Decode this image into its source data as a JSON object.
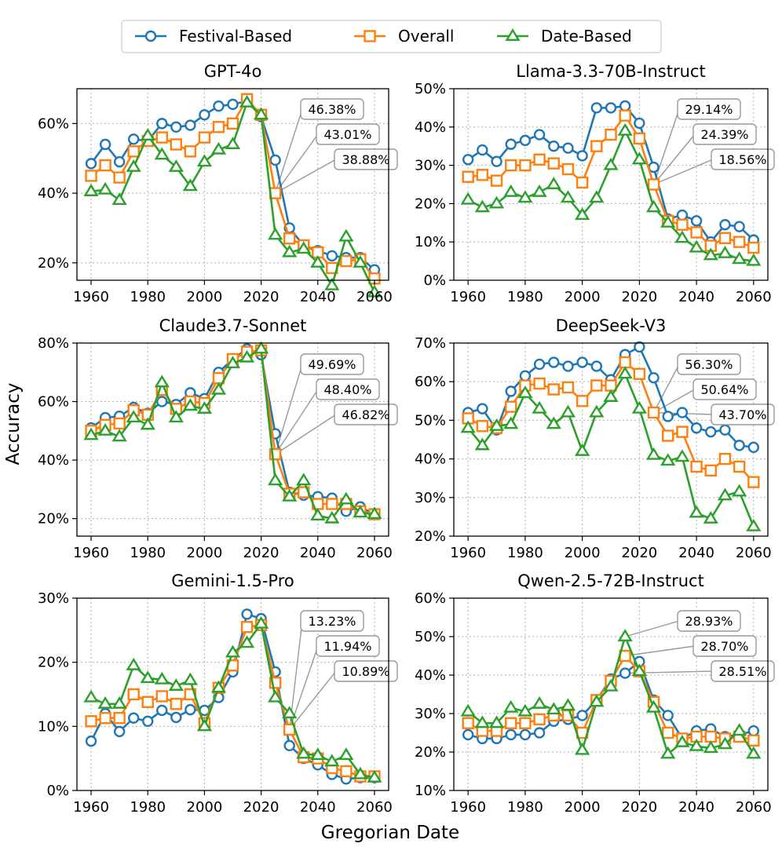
{
  "figure": {
    "ylabel": "Accuracy",
    "xlabel": "Gregorian Date",
    "legend": [
      "Festival-Based",
      "Overall",
      "Date-Based"
    ],
    "colors": {
      "Festival-Based": "#1f77b4",
      "Overall": "#ff7f0e",
      "Date-Based": "#2ca02c"
    }
  },
  "chart_data": [
    {
      "type": "line",
      "title": "GPT-4o",
      "x": [
        1960,
        1965,
        1970,
        1975,
        1980,
        1985,
        1990,
        1995,
        2000,
        2005,
        2010,
        2015,
        2020,
        2025,
        2030,
        2035,
        2040,
        2045,
        2050,
        2055,
        2060
      ],
      "xticks": [
        1960,
        1980,
        2000,
        2020,
        2040,
        2060
      ],
      "ylim": [
        15,
        70
      ],
      "yticks": [
        20,
        40,
        60
      ],
      "grid": true,
      "series": [
        {
          "name": "Festival-Based",
          "values": [
            48.5,
            54,
            49,
            55.5,
            55,
            60,
            59,
            59.5,
            62.5,
            65,
            65.5,
            66.5,
            62,
            49.5,
            30,
            25,
            23.5,
            22,
            21.5,
            21.5,
            18
          ]
        },
        {
          "name": "Overall",
          "values": [
            45,
            48,
            44.5,
            52,
            55,
            56,
            54,
            52,
            56,
            59,
            60,
            67,
            62.5,
            40,
            27,
            25,
            23,
            18.5,
            20.5,
            21,
            15.5
          ]
        },
        {
          "name": "Date-Based",
          "values": [
            40.5,
            41,
            38,
            47.5,
            56.5,
            51,
            47.5,
            42,
            49,
            52.5,
            54,
            66,
            62.5,
            28,
            23,
            24,
            20,
            13.5,
            27.5,
            20,
            11.5
          ]
        }
      ],
      "annotations": [
        "46.38%",
        "43.01%",
        "38.88%"
      ]
    },
    {
      "type": "line",
      "title": "Llama-3.3-70B-Instruct",
      "x": [
        1960,
        1965,
        1970,
        1975,
        1980,
        1985,
        1990,
        1995,
        2000,
        2005,
        2010,
        2015,
        2020,
        2025,
        2030,
        2035,
        2040,
        2045,
        2050,
        2055,
        2060
      ],
      "xticks": [
        1960,
        1980,
        2000,
        2020,
        2040,
        2060
      ],
      "ylim": [
        0,
        50
      ],
      "yticks": [
        0,
        10,
        20,
        30,
        40,
        50
      ],
      "grid": true,
      "series": [
        {
          "name": "Festival-Based",
          "values": [
            31.5,
            34,
            31,
            35.5,
            36.5,
            38,
            35,
            34.5,
            32.5,
            45,
            45,
            45.5,
            41,
            29.5,
            16,
            17,
            15.5,
            10,
            14.5,
            14,
            10.5
          ]
        },
        {
          "name": "Overall",
          "values": [
            27,
            27.5,
            26,
            30,
            30,
            31.5,
            30.5,
            29,
            25.5,
            35,
            38,
            43,
            37,
            25,
            15.5,
            14.5,
            12.5,
            9,
            11,
            10,
            8.5
          ]
        },
        {
          "name": "Date-Based",
          "values": [
            21,
            19,
            20,
            23,
            21.5,
            23,
            25,
            21.5,
            17,
            21.5,
            30,
            39,
            31.5,
            19,
            15,
            11,
            8.5,
            6.5,
            7,
            5.5,
            5
          ]
        }
      ],
      "annotations": [
        "29.14%",
        "24.39%",
        "18.56%"
      ]
    },
    {
      "type": "line",
      "title": "Claude3.7-Sonnet",
      "x": [
        1960,
        1965,
        1970,
        1975,
        1980,
        1985,
        1990,
        1995,
        2000,
        2005,
        2010,
        2015,
        2020,
        2025,
        2030,
        2035,
        2040,
        2045,
        2050,
        2055,
        2060
      ],
      "xticks": [
        1960,
        1980,
        2000,
        2020,
        2040,
        2060
      ],
      "ylim": [
        14,
        80
      ],
      "yticks": [
        20,
        40,
        60,
        80
      ],
      "grid": true,
      "series": [
        {
          "name": "Festival-Based",
          "values": [
            51,
            54.5,
            55,
            58,
            56,
            60,
            59,
            63,
            61,
            70,
            74.5,
            78,
            76,
            49,
            29,
            28,
            27.5,
            27,
            22.5,
            24,
            21.5
          ]
        },
        {
          "name": "Overall",
          "values": [
            50,
            52,
            52.5,
            57,
            55.5,
            64,
            57.5,
            60,
            59.5,
            68,
            74.5,
            77,
            77.5,
            42,
            28.5,
            29,
            25,
            25,
            25,
            22.5,
            21.5
          ]
        },
        {
          "name": "Date-Based",
          "values": [
            48.5,
            50,
            48,
            54.5,
            52,
            66.5,
            54.5,
            58.5,
            57.5,
            64,
            73,
            75,
            78,
            33,
            27.5,
            33,
            21,
            20,
            26.5,
            22,
            21.5
          ]
        }
      ],
      "annotations": [
        "49.69%",
        "48.40%",
        "46.82%"
      ]
    },
    {
      "type": "line",
      "title": "DeepSeek-V3",
      "x": [
        1960,
        1965,
        1970,
        1975,
        1980,
        1985,
        1990,
        1995,
        2000,
        2005,
        2010,
        2015,
        2020,
        2025,
        2030,
        2035,
        2040,
        2045,
        2050,
        2055,
        2060
      ],
      "xticks": [
        1960,
        1980,
        2000,
        2020,
        2040,
        2060
      ],
      "ylim": [
        20,
        70
      ],
      "yticks": [
        20,
        30,
        40,
        50,
        60,
        70
      ],
      "grid": true,
      "series": [
        {
          "name": "Festival-Based",
          "values": [
            52,
            53,
            47.5,
            57.5,
            61.5,
            64.5,
            65,
            64,
            65,
            64,
            60.5,
            67,
            69,
            61,
            51,
            52,
            48,
            47,
            47.5,
            43.5,
            43
          ]
        },
        {
          "name": "Overall",
          "values": [
            50.5,
            48.5,
            48,
            53.5,
            59,
            59.5,
            58,
            58.5,
            55,
            59,
            59,
            65,
            62,
            52,
            46,
            47,
            38,
            37,
            40,
            38,
            34
          ]
        },
        {
          "name": "Date-Based",
          "values": [
            48,
            43.5,
            48.5,
            49,
            57,
            53,
            49,
            52,
            42,
            52,
            56,
            62,
            53,
            41,
            39.5,
            40.5,
            26,
            24.5,
            30.5,
            31.5,
            22.5
          ]
        }
      ],
      "annotations": [
        "56.30%",
        "50.64%",
        "43.70%"
      ]
    },
    {
      "type": "line",
      "title": "Gemini-1.5-Pro",
      "x": [
        1960,
        1965,
        1970,
        1975,
        1980,
        1985,
        1990,
        1995,
        2000,
        2005,
        2010,
        2015,
        2020,
        2025,
        2030,
        2035,
        2040,
        2045,
        2050,
        2055,
        2060
      ],
      "xticks": [
        1960,
        1980,
        2000,
        2020,
        2040,
        2060
      ],
      "ylim": [
        0,
        30
      ],
      "yticks": [
        0,
        10,
        20,
        30
      ],
      "grid": true,
      "series": [
        {
          "name": "Festival-Based",
          "values": [
            7.7,
            12,
            9.2,
            11.3,
            10.8,
            12.5,
            11.4,
            12.6,
            12.5,
            14.5,
            18.5,
            27.5,
            26.8,
            18.5,
            7,
            5,
            4,
            2.5,
            1.8,
            2,
            2
          ]
        },
        {
          "name": "Overall",
          "values": [
            10.8,
            11.3,
            11.3,
            15,
            13.8,
            14.7,
            13.5,
            15,
            10.5,
            16,
            19.5,
            25.5,
            25.8,
            16.8,
            9.5,
            5.2,
            5,
            3.5,
            3,
            2.2,
            2.2
          ]
        },
        {
          "name": "Date-Based",
          "values": [
            14.5,
            13.5,
            13.5,
            19.5,
            17.5,
            17.3,
            16.3,
            17.2,
            10,
            16,
            21.5,
            23,
            26,
            14.5,
            12,
            5.7,
            5.5,
            4.5,
            5.5,
            2.5,
            2
          ]
        }
      ],
      "annotations": [
        "13.23%",
        "11.94%",
        "10.89%"
      ]
    },
    {
      "type": "line",
      "title": "Qwen-2.5-72B-Instruct",
      "x": [
        1960,
        1965,
        1970,
        1975,
        1980,
        1985,
        1990,
        1995,
        2000,
        2005,
        2010,
        2015,
        2020,
        2025,
        2030,
        2035,
        2040,
        2045,
        2050,
        2055,
        2060
      ],
      "xticks": [
        1960,
        1980,
        2000,
        2020,
        2040,
        2060
      ],
      "ylim": [
        10,
        60
      ],
      "yticks": [
        10,
        20,
        30,
        40,
        50,
        60
      ],
      "grid": true,
      "series": [
        {
          "name": "Festival-Based",
          "values": [
            24.5,
            23.5,
            23.5,
            24.5,
            24.5,
            25,
            28,
            28.5,
            29.5,
            33.5,
            39,
            40.5,
            43.5,
            33.5,
            29.5,
            23.5,
            25.5,
            26,
            24,
            24.5,
            25.5
          ]
        },
        {
          "name": "Overall",
          "values": [
            27.5,
            25.5,
            25.5,
            27.5,
            27.5,
            28.5,
            29.5,
            29.5,
            25,
            33.5,
            38.5,
            45,
            41,
            33,
            25,
            23.5,
            24,
            24,
            23.5,
            24,
            23
          ]
        },
        {
          "name": "Date-Based",
          "values": [
            30.5,
            27.5,
            27.5,
            31.5,
            30.5,
            32.5,
            31,
            32,
            20.5,
            33,
            37,
            50,
            41,
            31.5,
            19.5,
            22.5,
            21.5,
            21,
            22,
            25.5,
            19.5
          ]
        }
      ],
      "annotations": [
        "28.93%",
        "28.70%",
        "28.51%"
      ]
    }
  ]
}
